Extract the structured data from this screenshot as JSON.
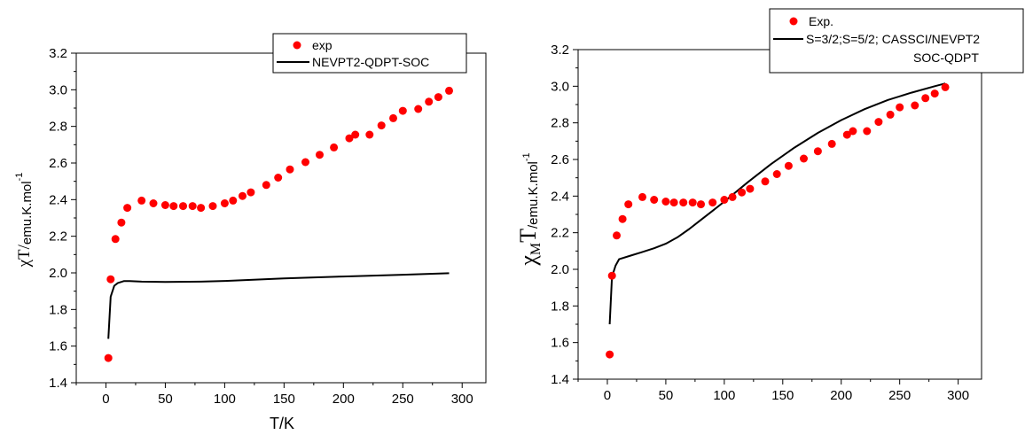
{
  "chart_data": [
    {
      "type": "scatter",
      "xlabel": "T/K",
      "ylabel_main": "χT/",
      "ylabel_unit": "emu.K.mol",
      "ylabel_sup": "-1",
      "xlim": [
        -25,
        320
      ],
      "ylim": [
        1.4,
        3.2
      ],
      "xticks": [
        0,
        50,
        100,
        150,
        200,
        250,
        300
      ],
      "yticks": [
        1.4,
        1.6,
        1.8,
        2.0,
        2.2,
        2.4,
        2.6,
        2.8,
        3.0,
        3.2
      ],
      "legend_position": "top-right",
      "legend": [
        "exp",
        "NEVPT2-QDPT-SOC"
      ],
      "colors": {
        "exp": "#ff0000",
        "calc": "#000000"
      },
      "series": [
        {
          "name": "exp",
          "style": "markers",
          "x": [
            2,
            4,
            8,
            13,
            18,
            30,
            40,
            50,
            57,
            65,
            73,
            80,
            90,
            100,
            107,
            115,
            122,
            135,
            145,
            155,
            168,
            180,
            192,
            205,
            210,
            222,
            232,
            242,
            250,
            263,
            272,
            280,
            289
          ],
          "y": [
            1.535,
            1.965,
            2.185,
            2.275,
            2.355,
            2.395,
            2.38,
            2.37,
            2.365,
            2.365,
            2.365,
            2.355,
            2.365,
            2.38,
            2.395,
            2.42,
            2.44,
            2.48,
            2.52,
            2.565,
            2.605,
            2.645,
            2.685,
            2.735,
            2.755,
            2.755,
            2.805,
            2.845,
            2.885,
            2.895,
            2.935,
            2.96,
            2.995
          ]
        },
        {
          "name": "NEVPT2-QDPT-SOC",
          "style": "line",
          "x": [
            2,
            4,
            7,
            10,
            15,
            20,
            30,
            50,
            80,
            100,
            150,
            200,
            250,
            289
          ],
          "y": [
            1.64,
            1.87,
            1.93,
            1.945,
            1.955,
            1.955,
            1.952,
            1.95,
            1.952,
            1.956,
            1.97,
            1.98,
            1.99,
            1.998
          ]
        }
      ]
    },
    {
      "type": "scatter",
      "xlabel": "",
      "ylabel_main": "χ",
      "ylabel_sub": "M",
      "ylabel_t": "T",
      "ylabel_unit": "/emu.K.mol",
      "ylabel_sup": "-1",
      "xlim": [
        -25,
        320
      ],
      "ylim": [
        1.4,
        3.2
      ],
      "xticks": [
        0,
        50,
        100,
        150,
        200,
        250,
        300
      ],
      "yticks": [
        1.4,
        1.6,
        1.8,
        2.0,
        2.2,
        2.4,
        2.6,
        2.8,
        3.0,
        3.2
      ],
      "legend_position": "top-right",
      "legend": [
        "Exp.",
        "S=3/2;S=5/2; CASSCI/NEVPT2",
        "SOC-QDPT"
      ],
      "colors": {
        "exp": "#ff0000",
        "calc": "#000000"
      },
      "series": [
        {
          "name": "Exp.",
          "style": "markers",
          "x": [
            2,
            4,
            8,
            13,
            18,
            30,
            40,
            50,
            57,
            65,
            73,
            80,
            90,
            100,
            107,
            115,
            122,
            135,
            145,
            155,
            168,
            180,
            192,
            205,
            210,
            222,
            232,
            242,
            250,
            263,
            272,
            280,
            289
          ],
          "y": [
            1.535,
            1.965,
            2.185,
            2.275,
            2.355,
            2.395,
            2.38,
            2.37,
            2.365,
            2.365,
            2.365,
            2.355,
            2.365,
            2.38,
            2.395,
            2.42,
            2.44,
            2.48,
            2.52,
            2.565,
            2.605,
            2.645,
            2.685,
            2.735,
            2.755,
            2.755,
            2.805,
            2.845,
            2.885,
            2.895,
            2.935,
            2.96,
            2.995
          ]
        },
        {
          "name": "S=3/2;S=5/2; CASSCI/NEVPT2 SOC-QDPT",
          "style": "line",
          "x": [
            2,
            4,
            7,
            10,
            20,
            30,
            40,
            50,
            60,
            70,
            80,
            90,
            100,
            120,
            140,
            160,
            180,
            200,
            220,
            240,
            260,
            280,
            289
          ],
          "y": [
            1.7,
            1.96,
            2.02,
            2.055,
            2.075,
            2.095,
            2.115,
            2.14,
            2.175,
            2.22,
            2.27,
            2.32,
            2.37,
            2.475,
            2.575,
            2.665,
            2.745,
            2.815,
            2.875,
            2.925,
            2.965,
            3.0,
            3.015
          ]
        }
      ]
    }
  ]
}
